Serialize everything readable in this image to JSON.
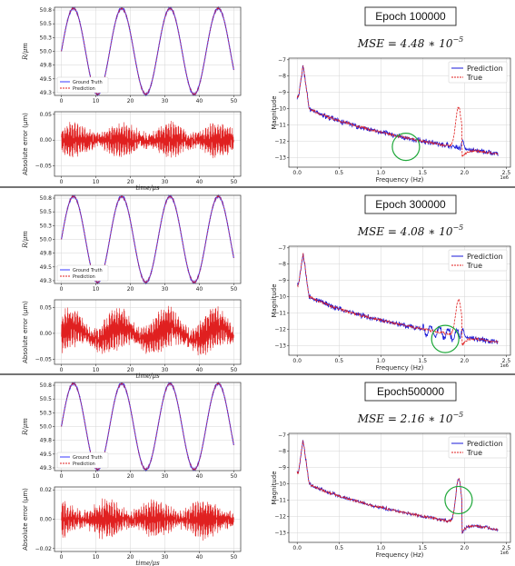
{
  "colors": {
    "ground_truth": "#3a3aff",
    "prediction": "#e02020",
    "pred_spec": "#1a1ad8",
    "true_spec": "#e02020",
    "circle": "#1fa83a",
    "overlap": "#7a2a8a"
  },
  "chart_data": [
    {
      "type": "line",
      "panel": "time",
      "row": 0,
      "ylabel": "R/μm",
      "ylim": [
        49.2,
        50.8
      ],
      "yticks": [
        49.25,
        49.5,
        49.75,
        50.0,
        50.25,
        50.5,
        50.75
      ],
      "xlim": [
        -2,
        52
      ],
      "xticks": [
        0,
        10,
        20,
        30,
        40,
        50
      ],
      "amplitude": 0.78,
      "center": 50.0,
      "period": 14,
      "series": [
        {
          "name": "Ground Truth"
        },
        {
          "name": "Prediction"
        }
      ],
      "legend": "lower-left"
    },
    {
      "type": "line",
      "panel": "error",
      "row": 0,
      "ylabel": "Absolute error (μm)",
      "xlabel": "time/μs",
      "ylim": [
        -0.07,
        0.055
      ],
      "yticks": [
        -0.05,
        0.0,
        0.05
      ],
      "xticks": [
        0,
        10,
        20,
        30,
        40,
        50
      ],
      "error_scale": 0.028
    },
    {
      "type": "line",
      "panel": "spectrum",
      "row": 0,
      "title": "Epoch 100000",
      "mse_mantissa": "4.48",
      "mse_exponent": "−5",
      "ylabel": "Magnitude",
      "xlabel": "Frequency (Hz)",
      "xlim": [
        -0.1,
        2.55
      ],
      "ylim": [
        -13.6,
        -6.9
      ],
      "yticks": [
        -7,
        -8,
        -9,
        -10,
        -11,
        -12,
        -13
      ],
      "xticks": [
        0.0,
        0.5,
        1.0,
        1.5,
        2.0,
        2.5
      ],
      "offset_text": "1e6",
      "series": [
        {
          "name": "Prediction"
        },
        {
          "name": "True"
        }
      ],
      "legend": "top-right",
      "pred_peak_at_1_95": false,
      "circle_freq": 1.3,
      "circle_mag": -12.35
    },
    {
      "type": "line",
      "panel": "time",
      "row": 1,
      "ylabel": "R/μm",
      "ylim": [
        49.2,
        50.8
      ],
      "yticks": [
        49.25,
        49.5,
        49.75,
        50.0,
        50.25,
        50.5,
        50.75
      ],
      "xlim": [
        -2,
        52
      ],
      "xticks": [
        0,
        10,
        20,
        30,
        40,
        50
      ],
      "amplitude": 0.78,
      "center": 50.0,
      "period": 14,
      "series": [
        {
          "name": "Ground Truth"
        },
        {
          "name": "Prediction"
        }
      ],
      "legend": "lower-left"
    },
    {
      "type": "line",
      "panel": "error",
      "row": 1,
      "ylabel": "Absolute error (μm)",
      "xlabel": "time/μs",
      "ylim": [
        -0.06,
        0.065
      ],
      "yticks": [
        -0.05,
        0.0,
        0.05
      ],
      "xticks": [
        0,
        10,
        20,
        30,
        40,
        50
      ],
      "error_scale": 0.035
    },
    {
      "type": "line",
      "panel": "spectrum",
      "row": 1,
      "title": "Epoch 300000",
      "mse_mantissa": "4.08",
      "mse_exponent": "−5",
      "ylabel": "Magnitude",
      "xlabel": "Frequency (Hz)",
      "xlim": [
        -0.1,
        2.55
      ],
      "ylim": [
        -13.6,
        -6.9
      ],
      "yticks": [
        -7,
        -8,
        -9,
        -10,
        -11,
        -12,
        -13
      ],
      "xticks": [
        0.0,
        0.5,
        1.0,
        1.5,
        2.0,
        2.5
      ],
      "offset_text": "1e6",
      "series": [
        {
          "name": "Prediction"
        },
        {
          "name": "True"
        }
      ],
      "legend": "top-right",
      "pred_peak_at_1_95": false,
      "circle_freq": 1.77,
      "circle_mag": -12.6
    },
    {
      "type": "line",
      "panel": "time",
      "row": 2,
      "ylabel": "R/μm",
      "ylim": [
        49.2,
        50.8
      ],
      "yticks": [
        49.25,
        49.5,
        49.75,
        50.0,
        50.25,
        50.5,
        50.75
      ],
      "xlim": [
        -2,
        52
      ],
      "xticks": [
        0,
        10,
        20,
        30,
        40,
        50
      ],
      "amplitude": 0.78,
      "center": 50.0,
      "period": 14,
      "series": [
        {
          "name": "Ground Truth"
        },
        {
          "name": "Prediction"
        }
      ],
      "legend": "lower-left"
    },
    {
      "type": "line",
      "panel": "error",
      "row": 2,
      "ylabel": "Absolute error (μm)",
      "xlabel": "time/μs",
      "ylim": [
        -0.022,
        0.022
      ],
      "yticks": [
        -0.02,
        0.0,
        0.02
      ],
      "xticks": [
        0,
        10,
        20,
        30,
        40,
        50
      ],
      "error_scale": 0.011
    },
    {
      "type": "line",
      "panel": "spectrum",
      "row": 2,
      "title": "Epoch500000",
      "mse_mantissa": "2.16",
      "mse_exponent": "−5",
      "ylabel": "Magnitude",
      "xlabel": "Frequency (Hz)",
      "xlim": [
        -0.1,
        2.55
      ],
      "ylim": [
        -13.6,
        -6.9
      ],
      "yticks": [
        -7,
        -8,
        -9,
        -10,
        -11,
        -12,
        -13
      ],
      "xticks": [
        0.0,
        0.5,
        1.0,
        1.5,
        2.0,
        2.5
      ],
      "offset_text": "1e6",
      "series": [
        {
          "name": "Prediction"
        },
        {
          "name": "True"
        }
      ],
      "legend": "top-right",
      "pred_peak_at_1_95": true,
      "circle_freq": 1.93,
      "circle_mag": -11.0
    }
  ]
}
